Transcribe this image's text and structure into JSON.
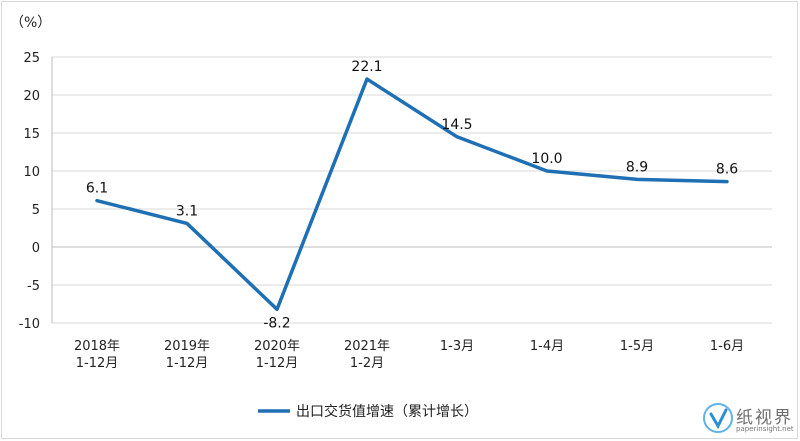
{
  "chart_data": {
    "type": "line",
    "unit_label": "（%）",
    "categories": [
      [
        "2018年",
        "1-12月"
      ],
      [
        "2019年",
        "1-12月"
      ],
      [
        "2020年",
        "1-12月"
      ],
      [
        "2021年",
        "1-2月"
      ],
      [
        "1-3月"
      ],
      [
        "1-4月"
      ],
      [
        "1-5月"
      ],
      [
        "1-6月"
      ]
    ],
    "series": [
      {
        "name": "出口交货值增速（累计增长）",
        "values": [
          6.1,
          3.1,
          -8.2,
          22.1,
          14.5,
          10.0,
          8.9,
          8.6
        ],
        "data_labels": [
          "6.1",
          "3.1",
          "-8.2",
          "22.1",
          "14.5",
          "10.0",
          "8.9",
          "8.6"
        ],
        "color": "#1f6fb4"
      }
    ],
    "ylim": [
      -10,
      25
    ],
    "yticks": [
      -10,
      -5,
      0,
      5,
      10,
      15,
      20,
      25
    ],
    "grid": true,
    "legend_position": "bottom-center"
  },
  "watermark": {
    "text": "纸视界",
    "sub": "paperinsight.net"
  }
}
